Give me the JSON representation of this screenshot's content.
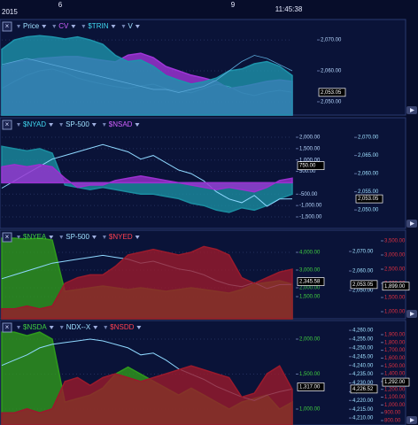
{
  "header": {
    "year": "2015",
    "day_labels": [
      "6",
      "9"
    ],
    "time": "11:45:38"
  },
  "chart_data": [
    {
      "type": "area",
      "grid": true,
      "ylim": [
        2045.7,
        2076.6
      ],
      "yticks": [
        {
          "value": 2050,
          "label": "2,050.00"
        },
        {
          "value": 2060,
          "label": "2,060.00"
        },
        {
          "value": 2070,
          "label": "2,070.00"
        }
      ],
      "series": [
        {
          "name": "Price",
          "color": "#9fe0ff",
          "kind": "line",
          "axis": "y",
          "values": [
            2054.3,
            2056.6,
            2058.6,
            2060,
            2060.6,
            2059.4,
            2057.7,
            2056.6,
            2055.7,
            2054.9,
            2054.3,
            2055.1,
            2055.7,
            2054.3,
            2053.4,
            2052.9,
            2054.3,
            2055.7,
            2054.9,
            2052.9,
            2052,
            2053.1,
            2053.7,
            2053.05
          ]
        },
        {
          "name": "CV",
          "color": "#a035d8",
          "kind": "area",
          "axis": "y",
          "values": [
            2061.4,
            2062.9,
            2063.4,
            2064,
            2064.3,
            2064.6,
            2064.6,
            2064,
            2063.4,
            2062.9,
            2065.1,
            2065.7,
            2064.3,
            2061.4,
            2060,
            2058.6,
            2057.7,
            2056.6,
            2054.3,
            2054.9,
            2055.7,
            2056.6,
            2057.1,
            2056.6
          ]
        },
        {
          "name": "$TRIN",
          "color": "#1d93ab",
          "kind": "area",
          "axis": "y",
          "values": [
            2067,
            2070,
            2071,
            2071.4,
            2071,
            2070.3,
            2071,
            2070,
            2068.6,
            2065,
            2063,
            2063.5,
            2061.5,
            2058.5,
            2057,
            2055.7,
            2056.5,
            2057.7,
            2060,
            2060.6,
            2062.3,
            2063,
            2061.5,
            2058.5
          ]
        },
        {
          "name": "V",
          "color": "#5aa8d8",
          "kind": "line",
          "axis": "y",
          "values": [
            2062,
            2063,
            2064,
            2063,
            2062,
            2061,
            2060,
            2059,
            2058,
            2057,
            2056,
            2055,
            2054,
            2054,
            2053,
            2054,
            2055,
            2057,
            2060,
            2063,
            2065,
            2064,
            2062,
            2060
          ]
        }
      ],
      "boxes": [
        {
          "value": 2053.05,
          "label": "2,053.05",
          "axis": "y"
        }
      ]
    },
    {
      "type": "area",
      "grid": true,
      "ylim": [
        -2005,
        2855
      ],
      "yticks": [
        {
          "value": -1500,
          "label": "-1,500.00"
        },
        {
          "value": -1000,
          "label": "-1,000.00"
        },
        {
          "value": -500,
          "label": "-500.00"
        },
        {
          "value": 500,
          "label": "500.00"
        },
        {
          "value": 1000,
          "label": "1,000.00"
        },
        {
          "value": 1500,
          "label": "1,500.00"
        },
        {
          "value": 2000,
          "label": "2,000.00"
        }
      ],
      "y2lim": [
        2044.9,
        2075.4
      ],
      "y2ticks": [
        {
          "value": 2050,
          "label": "2,050.00"
        },
        {
          "value": 2055,
          "label": "2,055.00"
        },
        {
          "value": 2060,
          "label": "2,060.00"
        },
        {
          "value": 2065,
          "label": "2,065.00"
        },
        {
          "value": 2070,
          "label": "2,070.00"
        }
      ],
      "series": [
        {
          "name": "$NYAD",
          "color": "#1a8da0",
          "kind": "area",
          "axis": "y",
          "values": [
            1600,
            1500,
            1400,
            1500,
            1300,
            -100,
            -200,
            -300,
            -200,
            -300,
            -400,
            -500,
            -500,
            -600,
            -700,
            -900,
            -1000,
            -1200,
            -1300,
            -1100,
            -1200,
            -1000,
            -700,
            -500
          ]
        },
        {
          "name": "SP-500",
          "color": "#8fd8ff",
          "kind": "line",
          "axis": "y2",
          "values": [
            2056,
            2058,
            2060,
            2062,
            2064,
            2065,
            2066,
            2067,
            2068,
            2067,
            2066,
            2064,
            2065,
            2063,
            2061,
            2060,
            2058,
            2055,
            2053,
            2052,
            2054,
            2051,
            2053,
            2053.05
          ]
        },
        {
          "name": "$NSAD",
          "color": "#9b30d0",
          "kind": "area",
          "axis": "y",
          "values": [
            700,
            800,
            700,
            800,
            700,
            200,
            -200,
            -100,
            -100,
            100,
            200,
            300,
            200,
            100,
            0,
            -100,
            -200,
            -300,
            -200,
            -300,
            -400,
            -200,
            100,
            200
          ]
        }
      ],
      "boxes": [
        {
          "value": 750,
          "label": "750.00",
          "axis": "y"
        },
        {
          "value": 2053.05,
          "label": "2,053.05",
          "axis": "y2"
        }
      ]
    },
    {
      "type": "area",
      "grid": true,
      "ylim": [
        250,
        5250
      ],
      "yticks": [
        {
          "value": 1500,
          "label": "1,500.00"
        },
        {
          "value": 2000,
          "label": "2,000.00"
        },
        {
          "value": 3000,
          "label": "3,000.00"
        },
        {
          "value": 4000,
          "label": "4,000.00"
        }
      ],
      "y2lim": [
        750,
        3875
      ],
      "y2ticks": [
        {
          "value": 1000,
          "label": "1,000.00"
        },
        {
          "value": 1500,
          "label": "1,500.00"
        },
        {
          "value": 2000,
          "label": "2,000.00"
        },
        {
          "value": 2500,
          "label": "2,500.00"
        },
        {
          "value": 3000,
          "label": "3,000.00"
        },
        {
          "value": 3500,
          "label": "3,500.00"
        }
      ],
      "y3lim": [
        2035.5,
        2080.9
      ],
      "y3ticks": [
        {
          "value": 2050,
          "label": "2,050.00"
        },
        {
          "value": 2060,
          "label": "2,060.00"
        },
        {
          "value": 2070,
          "label": "2,070.00"
        }
      ],
      "series": [
        {
          "name": "$NYEA",
          "color": "#2f9a1c",
          "kind": "area",
          "axis": "y",
          "values": [
            4800,
            4800,
            4750,
            4800,
            4700,
            1800,
            1900,
            2000,
            2100,
            2000,
            1900,
            2000,
            1900,
            1800,
            1900,
            2000,
            1900,
            1800,
            1700,
            1900,
            2200,
            2300,
            2400,
            2200
          ]
        },
        {
          "name": "SP-500",
          "color": "#8fd8ff",
          "kind": "line",
          "axis": "y3",
          "values": [
            2056,
            2058,
            2060,
            2062,
            2064,
            2065,
            2066,
            2067,
            2068,
            2067,
            2066,
            2064,
            2065,
            2063,
            2061,
            2060,
            2058,
            2055,
            2053,
            2052,
            2054,
            2051,
            2053,
            2053.05
          ]
        },
        {
          "name": "$NYED",
          "color": "#9a1a2c",
          "kind": "area",
          "axis": "y2",
          "values": [
            1100,
            1100,
            1200,
            1100,
            1200,
            2000,
            2200,
            2300,
            2300,
            2600,
            3000,
            3100,
            3200,
            3100,
            3000,
            3100,
            3300,
            3200,
            3000,
            2200,
            2000,
            2200,
            2400,
            2500
          ]
        }
      ],
      "boxes": [
        {
          "value": 2345.58,
          "label": "2,345.58",
          "axis": "y"
        },
        {
          "value": 2053.05,
          "label": "2,053.05",
          "axis": "y3"
        },
        {
          "value": 1899,
          "label": "1,899.00",
          "axis": "y2"
        }
      ]
    },
    {
      "type": "area",
      "grid": true,
      "ylim": [
        772,
        2266
      ],
      "yticks": [
        {
          "value": 1000,
          "label": "1,000.00"
        },
        {
          "value": 1500,
          "label": "1,500.00"
        },
        {
          "value": 2000,
          "label": "2,000.00"
        }
      ],
      "y2lim": [
        743,
        2081
      ],
      "y2ticks": [
        {
          "value": 800,
          "label": "800.00"
        },
        {
          "value": 900,
          "label": "900.00"
        },
        {
          "value": 1000,
          "label": "1,000.00"
        },
        {
          "value": 1100,
          "label": "1,100.00"
        },
        {
          "value": 1200,
          "label": "1,200.00"
        },
        {
          "value": 1300,
          "label": "1,300.00"
        },
        {
          "value": 1400,
          "label": "1,400.00"
        },
        {
          "value": 1500,
          "label": "1,500.00"
        },
        {
          "value": 1600,
          "label": "1,600.00"
        },
        {
          "value": 1700,
          "label": "1,700.00"
        },
        {
          "value": 1800,
          "label": "1,800.00"
        },
        {
          "value": 1900,
          "label": "1,900.00"
        }
      ],
      "y3lim": [
        4206,
        4265.6
      ],
      "y3ticks": [
        {
          "value": 4210,
          "label": "4,210.00"
        },
        {
          "value": 4215,
          "label": "4,215.00"
        },
        {
          "value": 4220,
          "label": "4,220.00"
        },
        {
          "value": 4225,
          "label": "4,225.00"
        },
        {
          "value": 4230,
          "label": "4,230.00"
        },
        {
          "value": 4235,
          "label": "4,235.00"
        },
        {
          "value": 4240,
          "label": "4,240.00"
        },
        {
          "value": 4245,
          "label": "4,245.00"
        },
        {
          "value": 4250,
          "label": "4,250.00"
        },
        {
          "value": 4255,
          "label": "4,255.00"
        },
        {
          "value": 4260,
          "label": "4,260.00"
        }
      ],
      "series": [
        {
          "name": "$NSDA",
          "color": "#2f9a1c",
          "kind": "area",
          "axis": "y",
          "values": [
            2100,
            2100,
            2050,
            2100,
            2000,
            1100,
            1150,
            1200,
            1300,
            1500,
            1600,
            1500,
            1400,
            1300,
            1200,
            1300,
            1200,
            1100,
            1000,
            1100,
            1150,
            1200,
            1000,
            1100
          ]
        },
        {
          "name": "NDX--X",
          "color": "#8fd8ff",
          "kind": "line",
          "axis": "y3",
          "values": [
            4240,
            4243,
            4246,
            4250,
            4252,
            4253,
            4254,
            4255,
            4254,
            4252,
            4250,
            4246,
            4247,
            4243,
            4238,
            4235,
            4232,
            4228,
            4225,
            4222,
            4220,
            4223,
            4225,
            4226.52
          ]
        },
        {
          "name": "$NSDD",
          "color": "#9a1a2c",
          "kind": "area",
          "axis": "y2",
          "values": [
            900,
            900,
            950,
            900,
            950,
            1300,
            1350,
            1250,
            1350,
            1400,
            1350,
            1300,
            1350,
            1400,
            1450,
            1500,
            1450,
            1400,
            1350,
            1100,
            1150,
            1400,
            1500,
            1200
          ]
        }
      ],
      "boxes": [
        {
          "value": 1317,
          "label": "1,317.00",
          "axis": "y"
        },
        {
          "value": 4226.52,
          "label": "4,226.52",
          "axis": "y3"
        },
        {
          "value": 1292,
          "label": "1,292.00",
          "axis": "y2"
        }
      ]
    }
  ]
}
